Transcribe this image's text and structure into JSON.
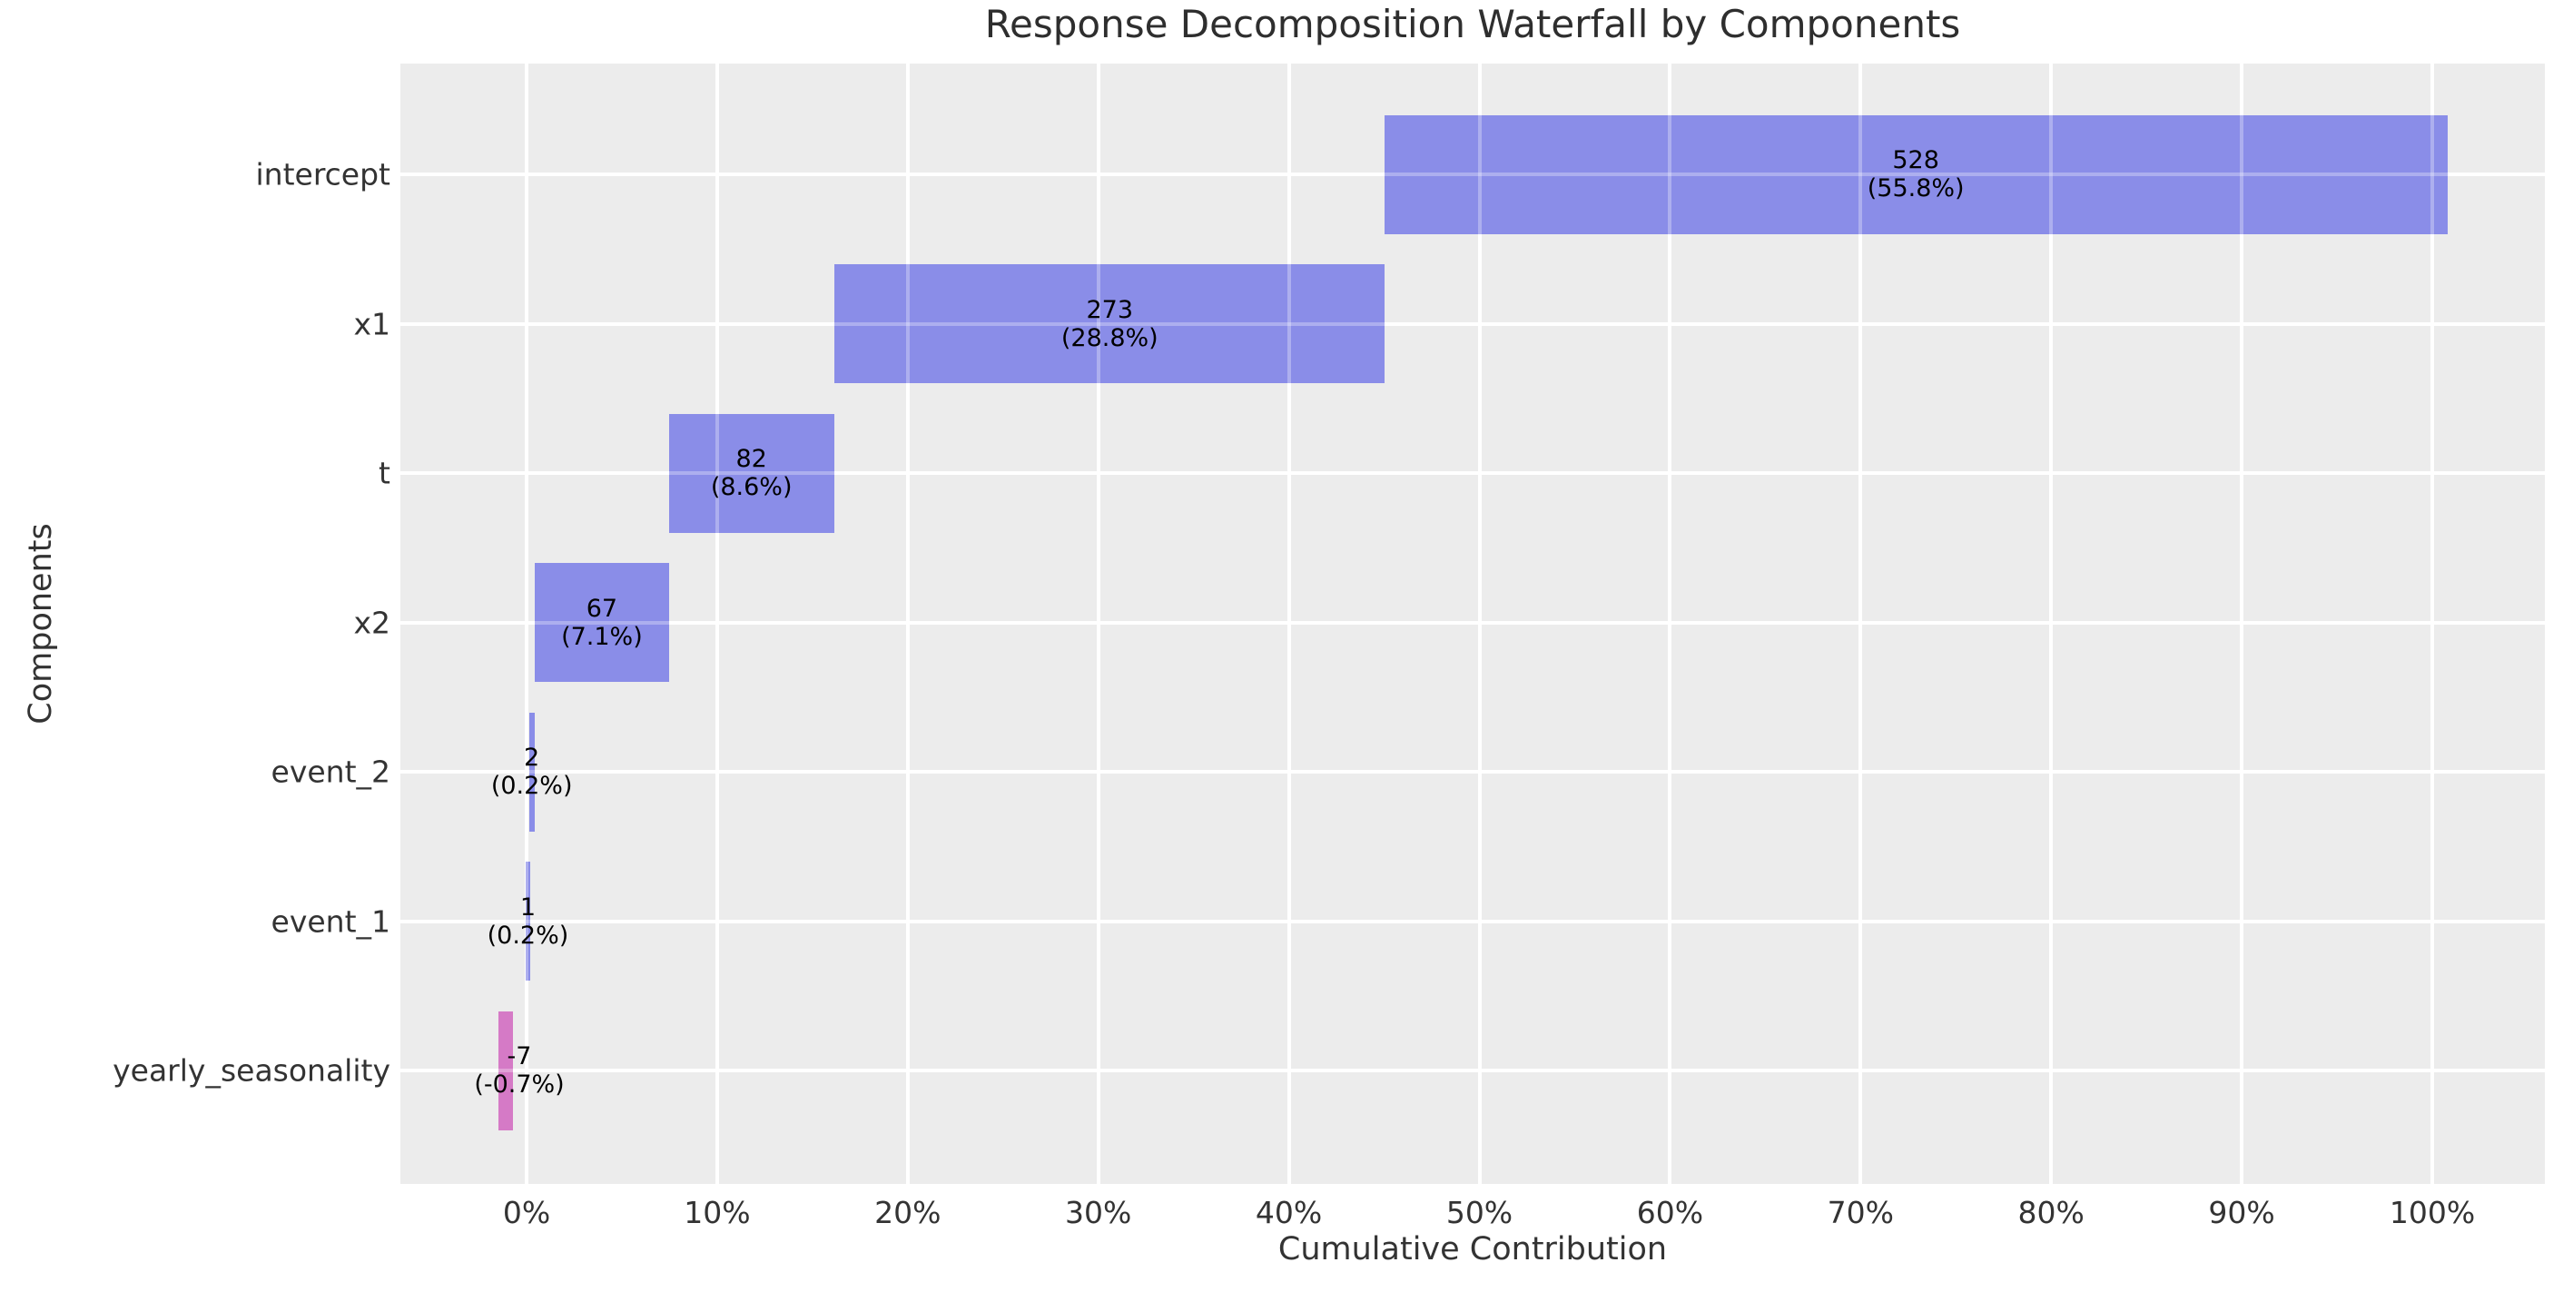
{
  "chart_data": {
    "type": "bar",
    "subtype": "horizontal-waterfall",
    "title": "Response Decomposition Waterfall by Components",
    "xlabel": "Cumulative Contribution",
    "ylabel": "Components",
    "categories": [
      "intercept",
      "x1",
      "t",
      "x2",
      "event_2",
      "event_1",
      "yearly_seasonality"
    ],
    "values": [
      528,
      273,
      82,
      67,
      2,
      1,
      -7
    ],
    "percent_labels": [
      "(55.8%)",
      "(28.8%)",
      "(8.6%)",
      "(7.1%)",
      "(0.2%)",
      "(0.2%)",
      "(-0.7%)"
    ],
    "bars": [
      {
        "category": "intercept",
        "value_label": "528",
        "pct_label": "(55.8%)",
        "start_pct": 45.02,
        "end_pct": 100.81,
        "label_x_pct": 72.9,
        "sign": "positive"
      },
      {
        "category": "x1",
        "value_label": "273",
        "pct_label": "(28.8%)",
        "start_pct": 16.16,
        "end_pct": 45.02,
        "label_x_pct": 30.6,
        "sign": "positive"
      },
      {
        "category": "t",
        "value_label": "82",
        "pct_label": "(8.6%)",
        "start_pct": 7.49,
        "end_pct": 16.16,
        "label_x_pct": 11.8,
        "sign": "positive"
      },
      {
        "category": "x2",
        "value_label": "67",
        "pct_label": "(7.1%)",
        "start_pct": 0.41,
        "end_pct": 7.49,
        "label_x_pct": 3.95,
        "sign": "positive"
      },
      {
        "category": "event_2",
        "value_label": "2",
        "pct_label": "(0.2%)",
        "start_pct": 0.14,
        "end_pct": 0.41,
        "label_x_pct": 0.27,
        "sign": "positive"
      },
      {
        "category": "event_1",
        "value_label": "1",
        "pct_label": "(0.2%)",
        "start_pct": -0.04,
        "end_pct": 0.18,
        "label_x_pct": 0.07,
        "sign": "positive"
      },
      {
        "category": "yearly_seasonality",
        "value_label": "-7",
        "pct_label": "(-0.7%)",
        "start_pct": -1.48,
        "end_pct": -0.71,
        "label_x_pct": -0.38,
        "sign": "negative"
      }
    ],
    "x_ticks": [
      {
        "pct": 0,
        "label": "0%"
      },
      {
        "pct": 10,
        "label": "10%"
      },
      {
        "pct": 20,
        "label": "20%"
      },
      {
        "pct": 30,
        "label": "30%"
      },
      {
        "pct": 40,
        "label": "40%"
      },
      {
        "pct": 50,
        "label": "50%"
      },
      {
        "pct": 60,
        "label": "60%"
      },
      {
        "pct": 70,
        "label": "70%"
      },
      {
        "pct": 80,
        "label": "80%"
      },
      {
        "pct": 90,
        "label": "90%"
      },
      {
        "pct": 100,
        "label": "100%"
      }
    ],
    "xlim": [
      -6.6,
      105.9
    ],
    "grid": true,
    "legend": "none",
    "colors": {
      "positive": "#8a8de8",
      "negative": "#d57ac6",
      "plot_background": "#ececec",
      "gridline": "#ffffff",
      "text": "#333333",
      "title_text": "#2e2e2e",
      "bar_label_text": "#000000"
    }
  }
}
